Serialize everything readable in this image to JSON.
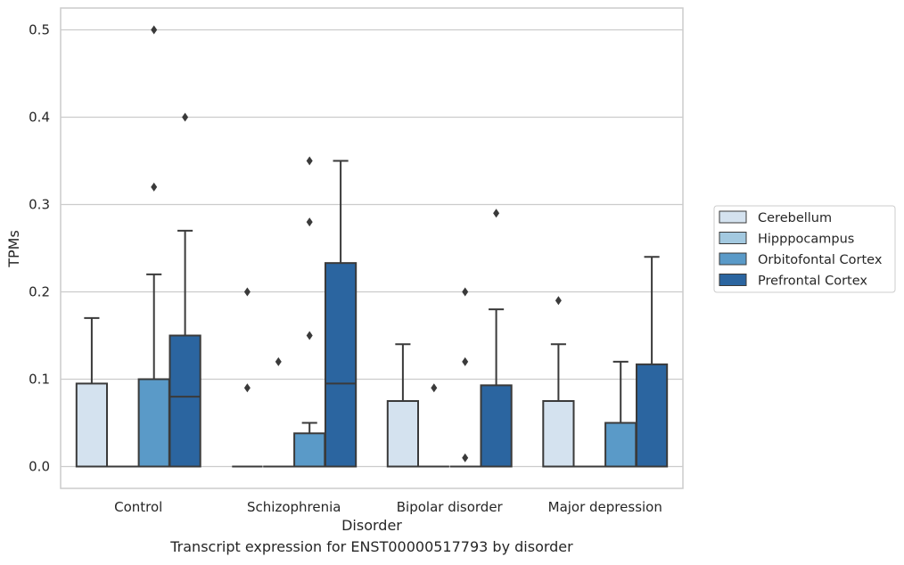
{
  "chart_data": {
    "type": "boxplot",
    "xlabel": "Disorder",
    "ylabel": "TPMs",
    "caption": "Transcript expression for ENST00000517793 by disorder",
    "ylim": [
      -0.025,
      0.525
    ],
    "yticks": [
      0.0,
      0.1,
      0.2,
      0.3,
      0.4,
      0.5
    ],
    "ytick_labels": [
      "0.0",
      "0.1",
      "0.2",
      "0.3",
      "0.4",
      "0.5"
    ],
    "grid": "horizontal",
    "legend_position": "right",
    "categories": [
      "Control",
      "Schizophrenia",
      "Bipolar disorder",
      "Major depression"
    ],
    "series": [
      {
        "name": "Cerebellum",
        "color": "#d4e2ef",
        "boxes": [
          {
            "q1": 0.0,
            "median": 0.0,
            "q3": 0.095,
            "whislo": 0.0,
            "whishi": 0.17,
            "fliers": []
          },
          {
            "q1": 0.0,
            "median": 0.0,
            "q3": 0.0,
            "whislo": 0.0,
            "whishi": 0.0,
            "fliers": [
              0.09,
              0.2
            ]
          },
          {
            "q1": 0.0,
            "median": 0.0,
            "q3": 0.075,
            "whislo": 0.0,
            "whishi": 0.14,
            "fliers": []
          },
          {
            "q1": 0.0,
            "median": 0.0,
            "q3": 0.075,
            "whislo": 0.0,
            "whishi": 0.14,
            "fliers": [
              0.19
            ]
          }
        ]
      },
      {
        "name": "Hipppocampus",
        "color": "#a3c9e0",
        "boxes": [
          {
            "q1": 0.0,
            "median": 0.0,
            "q3": 0.0,
            "whislo": 0.0,
            "whishi": 0.0,
            "fliers": []
          },
          {
            "q1": 0.0,
            "median": 0.0,
            "q3": 0.0,
            "whislo": 0.0,
            "whishi": 0.0,
            "fliers": [
              0.12
            ]
          },
          {
            "q1": 0.0,
            "median": 0.0,
            "q3": 0.0,
            "whislo": 0.0,
            "whishi": 0.0,
            "fliers": [
              0.09
            ]
          },
          {
            "q1": 0.0,
            "median": 0.0,
            "q3": 0.0,
            "whislo": 0.0,
            "whishi": 0.0,
            "fliers": []
          }
        ]
      },
      {
        "name": "Orbitofontal Cortex",
        "color": "#5a9ac8",
        "boxes": [
          {
            "q1": 0.0,
            "median": 0.0,
            "q3": 0.1,
            "whislo": 0.0,
            "whishi": 0.22,
            "fliers": [
              0.32,
              0.5
            ]
          },
          {
            "q1": 0.0,
            "median": 0.0,
            "q3": 0.038,
            "whislo": 0.0,
            "whishi": 0.05,
            "fliers": [
              0.15,
              0.28,
              0.35
            ]
          },
          {
            "q1": 0.0,
            "median": 0.0,
            "q3": 0.0,
            "whislo": 0.0,
            "whishi": 0.0,
            "fliers": [
              0.01,
              0.12,
              0.2
            ]
          },
          {
            "q1": 0.0,
            "median": 0.0,
            "q3": 0.05,
            "whislo": 0.0,
            "whishi": 0.12,
            "fliers": []
          }
        ]
      },
      {
        "name": "Prefrontal Cortex",
        "color": "#2b65a0",
        "boxes": [
          {
            "q1": 0.0,
            "median": 0.08,
            "q3": 0.15,
            "whislo": 0.0,
            "whishi": 0.27,
            "fliers": [
              0.4
            ]
          },
          {
            "q1": 0.0,
            "median": 0.095,
            "q3": 0.233,
            "whislo": 0.0,
            "whishi": 0.35,
            "fliers": []
          },
          {
            "q1": 0.0,
            "median": 0.0,
            "q3": 0.093,
            "whislo": 0.0,
            "whishi": 0.18,
            "fliers": [
              0.29
            ]
          },
          {
            "q1": 0.0,
            "median": 0.0,
            "q3": 0.117,
            "whislo": 0.0,
            "whishi": 0.24,
            "fliers": []
          }
        ]
      }
    ]
  }
}
